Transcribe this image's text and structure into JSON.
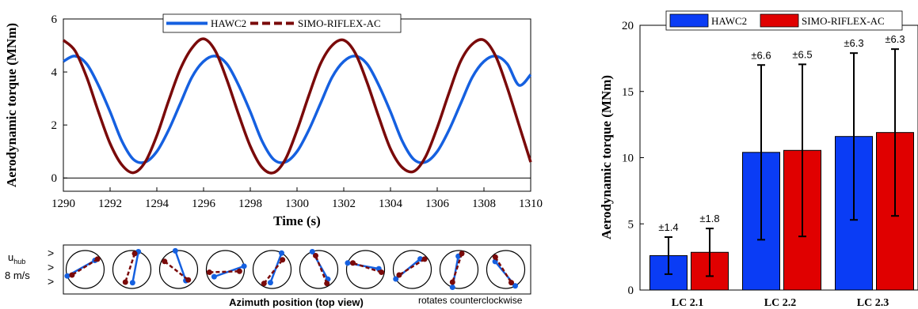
{
  "chart_data": [
    {
      "type": "line",
      "xlabel": "Time (s)",
      "ylabel": "Aerodynamic torque (MNm)",
      "xlim": [
        1290,
        1310
      ],
      "ylim": [
        -0.5,
        6
      ],
      "xticks": [
        1290,
        1292,
        1294,
        1296,
        1298,
        1300,
        1302,
        1304,
        1306,
        1308,
        1310
      ],
      "yticks": [
        0,
        2,
        4,
        6
      ],
      "legend_position": "top-center",
      "series": [
        {
          "name": "HAWC2",
          "color": "#1560E0",
          "style": "solid",
          "x": [
            1290,
            1290.5,
            1291,
            1291.5,
            1292,
            1292.5,
            1293,
            1293.5,
            1294,
            1294.5,
            1295,
            1295.5,
            1296,
            1296.5,
            1297,
            1297.5,
            1298,
            1298.5,
            1299,
            1299.5,
            1300,
            1300.5,
            1301,
            1301.5,
            1302,
            1302.5,
            1303,
            1303.5,
            1304,
            1304.5,
            1305,
            1305.5,
            1306,
            1306.5,
            1307,
            1307.5,
            1308,
            1308.5,
            1309,
            1309.5,
            1310
          ],
          "y": [
            4.4,
            4.6,
            4.3,
            3.5,
            2.5,
            1.4,
            0.7,
            0.6,
            1.0,
            1.8,
            2.8,
            3.8,
            4.4,
            4.6,
            4.3,
            3.5,
            2.5,
            1.4,
            0.7,
            0.6,
            1.0,
            1.8,
            2.8,
            3.8,
            4.4,
            4.6,
            4.3,
            3.5,
            2.5,
            1.4,
            0.7,
            0.6,
            1.0,
            1.8,
            2.8,
            3.8,
            4.4,
            4.6,
            4.3,
            3.5,
            3.9
          ]
        },
        {
          "name": "SIMO-RIFLEX-AC",
          "color": "#7A0A0A",
          "style": "dashed",
          "x": [
            1290,
            1290.5,
            1291,
            1291.5,
            1292,
            1292.5,
            1293,
            1293.5,
            1294,
            1294.5,
            1295,
            1295.5,
            1296,
            1296.5,
            1297,
            1297.5,
            1298,
            1298.5,
            1299,
            1299.5,
            1300,
            1300.5,
            1301,
            1301.5,
            1302,
            1302.5,
            1303,
            1303.5,
            1304,
            1304.5,
            1305,
            1305.5,
            1306,
            1306.5,
            1307,
            1307.5,
            1308,
            1308.5,
            1309,
            1309.5,
            1310
          ],
          "y": [
            5.2,
            4.8,
            3.8,
            2.5,
            1.3,
            0.5,
            0.2,
            0.6,
            1.6,
            2.9,
            4.1,
            4.9,
            5.25,
            4.8,
            3.7,
            2.4,
            1.2,
            0.4,
            0.2,
            0.7,
            1.8,
            3.1,
            4.3,
            5.0,
            5.2,
            4.7,
            3.6,
            2.3,
            1.1,
            0.4,
            0.25,
            0.8,
            1.9,
            3.2,
            4.4,
            5.05,
            5.2,
            4.6,
            3.4,
            2.0,
            0.6
          ]
        }
      ]
    },
    {
      "type": "bar",
      "ylabel": "Aerodynamic torque (MNm)",
      "ylim": [
        0,
        20
      ],
      "yticks": [
        0,
        5,
        10,
        15,
        20
      ],
      "categories": [
        "LC 2.1",
        "LC 2.2",
        "LC 2.3"
      ],
      "legend_position": "top-left",
      "series": [
        {
          "name": "HAWC2",
          "color": "#0A3CF5",
          "values": [
            2.6,
            10.4,
            11.6
          ],
          "errors": [
            1.4,
            6.6,
            6.3
          ],
          "labels": [
            "±1.4",
            "±6.6",
            "±6.3"
          ]
        },
        {
          "name": "SIMO-RIFLEX-AC",
          "color": "#E00000",
          "values": [
            2.85,
            10.55,
            11.9
          ],
          "errors": [
            1.8,
            6.5,
            6.3
          ],
          "labels": [
            "±1.8",
            "±6.5",
            "±6.3"
          ]
        }
      ]
    }
  ],
  "azimuth_strip": {
    "inflow_label": "u",
    "inflow_subscript": "hub",
    "inflow_speed": "8 m/s",
    "inflow_arrows": ">",
    "title": "Azimuth position (top view)",
    "note": "rotates counterclockwise",
    "rotor_count": 10,
    "blue_angles_deg": [
      200,
      70,
      100,
      10,
      60,
      110,
      160,
      210,
      250,
      300
    ],
    "red_angles_deg": [
      40,
      80,
      150,
      190,
      240,
      300,
      350,
      40,
      80,
      130
    ]
  }
}
